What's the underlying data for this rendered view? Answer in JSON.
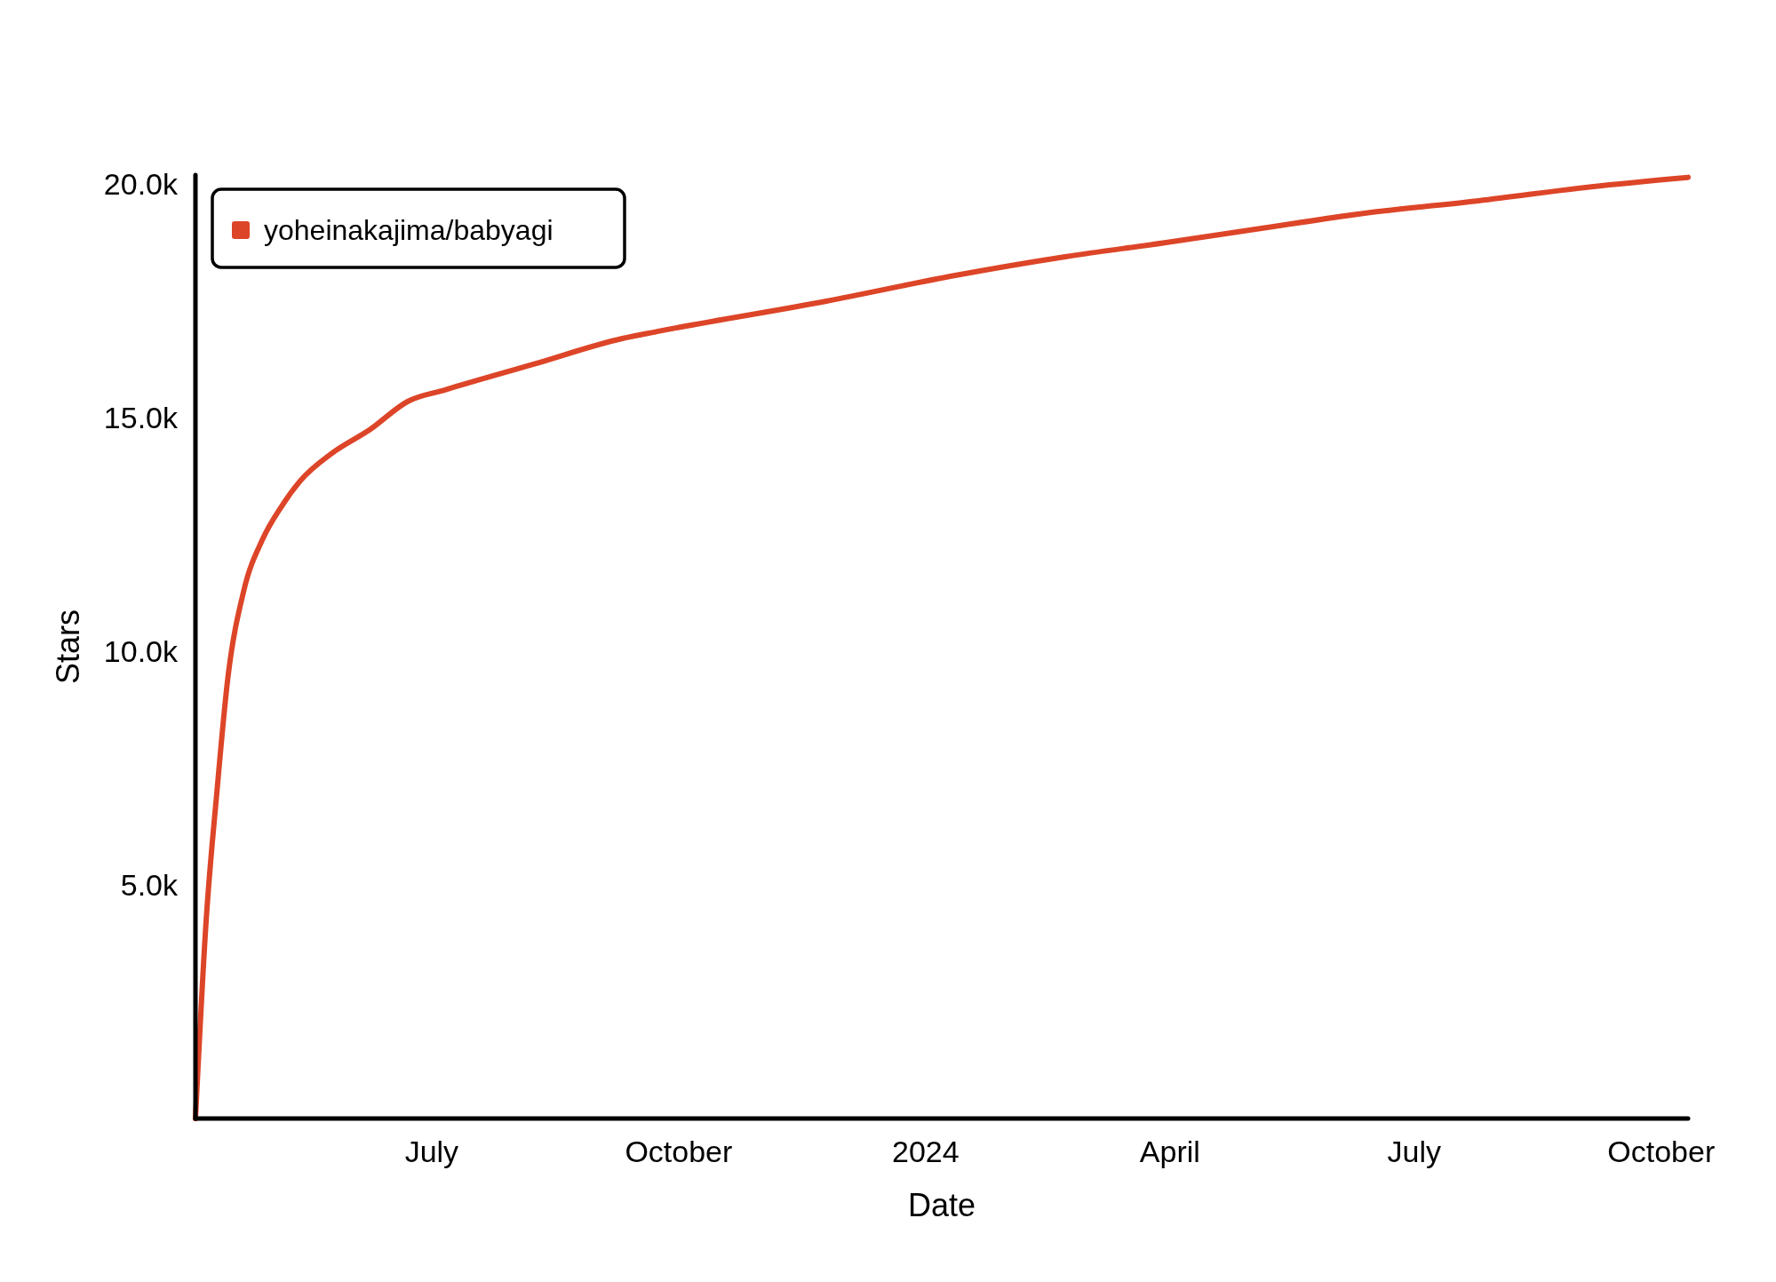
{
  "chart_data": {
    "type": "line",
    "xlabel": "Date",
    "ylabel": "Stars",
    "x": [
      "2023-04-04",
      "2023-04-08",
      "2023-04-12",
      "2023-04-16",
      "2023-04-22",
      "2023-04-29",
      "2023-05-06",
      "2023-05-13",
      "2023-05-25",
      "2023-06-08",
      "2023-06-22",
      "2023-07-06",
      "2023-08-08",
      "2023-09-10",
      "2023-09-23",
      "2023-11-25",
      "2024-01-12",
      "2024-02-22",
      "2024-03-30",
      "2024-05-04",
      "2024-06-15",
      "2024-07-25",
      "2024-09-05",
      "2024-10-11"
    ],
    "series": [
      {
        "name": "yoheinakajima/babyagi",
        "color": "#dd4528",
        "values": [
          0,
          4250,
          7000,
          9400,
          11300,
          12400,
          13100,
          13650,
          14250,
          14750,
          15350,
          15600,
          16150,
          16700,
          16850,
          17500,
          18050,
          18450,
          18750,
          19050,
          19400,
          19650,
          19950,
          20150
        ]
      }
    ],
    "xlim": [
      "2023-04-04",
      "2024-10-11"
    ],
    "xticks": [
      {
        "value": "2023-07-01",
        "label": "July"
      },
      {
        "value": "2023-10-01",
        "label": "October"
      },
      {
        "value": "2024-01-01",
        "label": "2024"
      },
      {
        "value": "2024-04-01",
        "label": "April"
      },
      {
        "value": "2024-07-01",
        "label": "July"
      },
      {
        "value": "2024-10-01",
        "label": "October"
      }
    ],
    "ylim": [
      0,
      20200
    ],
    "yticks": [
      {
        "value": 5000,
        "label": "5.0k"
      },
      {
        "value": 10000,
        "label": "10.0k"
      },
      {
        "value": 15000,
        "label": "15.0k"
      },
      {
        "value": 20000,
        "label": "20.0k"
      }
    ],
    "grid": false,
    "legend": "top left",
    "marker": "none",
    "line_style": "solid"
  }
}
